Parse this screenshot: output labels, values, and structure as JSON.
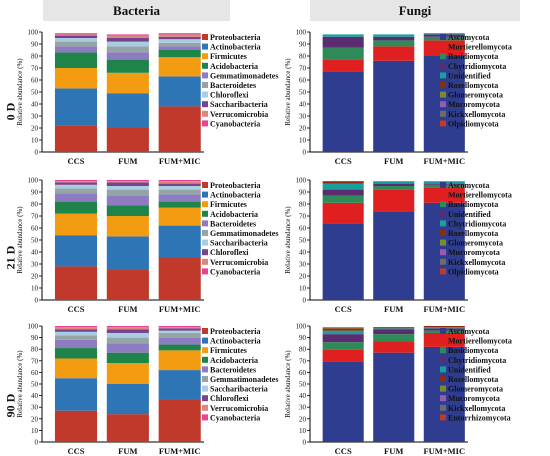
{
  "headers": {
    "bacteria": "Bacteria",
    "fungi": "Fungi"
  },
  "rows": [
    "0 D",
    "21 D",
    "90 D"
  ],
  "axis": {
    "ylabel": "Relative abundance (%)",
    "ticks": [
      "0",
      "10",
      "20",
      "30",
      "40",
      "50",
      "60",
      "70",
      "80",
      "90",
      "100"
    ]
  },
  "colors": {
    "bacteria": [
      "#C0392B",
      "#2E75B6",
      "#F39C12",
      "#1E8449",
      "#8E7CC3",
      "#95A5A6",
      "#A9CCE3",
      "#76448A",
      "#D98880",
      "#E84393"
    ],
    "fungi": [
      "#2E3D8F",
      "#E02020",
      "#2E8B57",
      "#5B2C6F",
      "#1A9E9E",
      "#8B2E10",
      "#7D8B2E",
      "#9B59B6",
      "#6C6C6C",
      "#C0392B",
      "#3A5A1A"
    ]
  },
  "chart_data": [
    {
      "type": "bar",
      "stacked": true,
      "panel": "Bacteria 0 D",
      "categories": [
        "CCS",
        "FUM",
        "FUM+MIC"
      ],
      "ylim": [
        0,
        100
      ],
      "ylabel": "Relative abundance (%)",
      "legend": [
        "Proteobacteria",
        "Actinobacteria",
        "Firmicutes",
        "Acidobacteria",
        "Gemmatimonadetes",
        "Bacteroidetes",
        "Chloroflexi",
        "Saccharibacteria",
        "Verrucomicrobia",
        "Cyanobacteria"
      ],
      "series": [
        {
          "name": "Proteobacteria",
          "values": [
            22,
            20,
            38
          ]
        },
        {
          "name": "Actinobacteria",
          "values": [
            31,
            29,
            25
          ]
        },
        {
          "name": "Firmicutes",
          "values": [
            17,
            17,
            16
          ]
        },
        {
          "name": "Acidobacteria",
          "values": [
            13,
            11,
            6
          ]
        },
        {
          "name": "Gemmatimonadetes",
          "values": [
            5,
            6,
            3
          ]
        },
        {
          "name": "Bacteroidetes",
          "values": [
            4,
            5,
            3
          ]
        },
        {
          "name": "Chloroflexi",
          "values": [
            3,
            4,
            3
          ]
        },
        {
          "name": "Saccharibacteria",
          "values": [
            2,
            3,
            2
          ]
        },
        {
          "name": "Verrucomicrobia",
          "values": [
            1,
            2,
            2
          ]
        },
        {
          "name": "Cyanobacteria",
          "values": [
            1,
            1,
            1
          ]
        }
      ]
    },
    {
      "type": "bar",
      "stacked": true,
      "panel": "Fungi 0 D",
      "categories": [
        "CCS",
        "FUM",
        "FUM+MIC"
      ],
      "ylim": [
        0,
        100
      ],
      "ylabel": "Relative abundance (%)",
      "legend": [
        "Ascomycota",
        "Mortierellomycota",
        "Basidiomycota",
        "Chytridiomycota",
        "Unidentified",
        "Rozellomycota",
        "Glomeromycota",
        "Mucoromycota",
        "Kickxellomycota",
        "Olpidiomycota"
      ],
      "series": [
        {
          "name": "Ascomycota",
          "values": [
            67,
            76,
            80
          ]
        },
        {
          "name": "Mortierellomycota",
          "values": [
            10,
            12,
            13
          ]
        },
        {
          "name": "Basidiomycota",
          "values": [
            10,
            5,
            3
          ]
        },
        {
          "name": "Chytridiomycota",
          "values": [
            9,
            3,
            2
          ]
        },
        {
          "name": "Unidentified",
          "values": [
            2,
            2,
            1
          ]
        },
        {
          "name": "Rozellomycota",
          "values": [
            0,
            0,
            0
          ]
        },
        {
          "name": "Glomeromycota",
          "values": [
            0,
            0,
            0
          ]
        },
        {
          "name": "Mucoromycota",
          "values": [
            0,
            0,
            0
          ]
        },
        {
          "name": "Kickxellomycota",
          "values": [
            0,
            0,
            0
          ]
        },
        {
          "name": "Olpidiomycota",
          "values": [
            0,
            0,
            0
          ]
        }
      ]
    },
    {
      "type": "bar",
      "stacked": true,
      "panel": "Bacteria 21 D",
      "categories": [
        "CCS",
        "FUM",
        "FUM+MIC"
      ],
      "ylim": [
        0,
        100
      ],
      "ylabel": "Relative abundance (%)",
      "legend": [
        "Proteobacteria",
        "Actinobacteria",
        "Firmicutes",
        "Acidobacteria",
        "Bacteroidetes",
        "Gemmatimonadetes",
        "Saccharibacteria",
        "Chloroflexi",
        "Verrucomicrobia",
        "Cyanobacteria"
      ],
      "series": [
        {
          "name": "Proteobacteria",
          "values": [
            28,
            25,
            35
          ]
        },
        {
          "name": "Actinobacteria",
          "values": [
            26,
            28,
            27
          ]
        },
        {
          "name": "Firmicutes",
          "values": [
            18,
            17,
            15
          ]
        },
        {
          "name": "Acidobacteria",
          "values": [
            10,
            9,
            5
          ]
        },
        {
          "name": "Bacteroidetes",
          "values": [
            7,
            8,
            6
          ]
        },
        {
          "name": "Gemmatimonadetes",
          "values": [
            4,
            5,
            4
          ]
        },
        {
          "name": "Saccharibacteria",
          "values": [
            3,
            3,
            3
          ]
        },
        {
          "name": "Chloroflexi",
          "values": [
            2,
            3,
            2
          ]
        },
        {
          "name": "Verrucomicrobia",
          "values": [
            1,
            1,
            2
          ]
        },
        {
          "name": "Cyanobacteria",
          "values": [
            1,
            1,
            1
          ]
        }
      ]
    },
    {
      "type": "bar",
      "stacked": true,
      "panel": "Fungi 21 D",
      "categories": [
        "CCS",
        "FUM",
        "FUM+MIC"
      ],
      "ylim": [
        0,
        100
      ],
      "ylabel": "Relative abundance (%)",
      "legend": [
        "Ascomycota",
        "Mortierellomycota",
        "Basidiomycota",
        "Unidentified",
        "Chytridiomycota",
        "Rozellomycota",
        "Glomeromycota",
        "Mucoromycota",
        "Kickxellomycota",
        "Olpidiomycota"
      ],
      "series": [
        {
          "name": "Ascomycota",
          "values": [
            64,
            74,
            81
          ]
        },
        {
          "name": "Mortierellomycota",
          "values": [
            17,
            18,
            13
          ]
        },
        {
          "name": "Basidiomycota",
          "values": [
            6,
            3,
            2
          ]
        },
        {
          "name": "Unidentified",
          "values": [
            5,
            2,
            1
          ]
        },
        {
          "name": "Chytridiomycota",
          "values": [
            5,
            2,
            2
          ]
        },
        {
          "name": "Rozellomycota",
          "values": [
            2,
            0,
            0
          ]
        },
        {
          "name": "Glomeromycota",
          "values": [
            0,
            0,
            0
          ]
        },
        {
          "name": "Mucoromycota",
          "values": [
            0,
            0,
            0
          ]
        },
        {
          "name": "Kickxellomycota",
          "values": [
            0,
            0,
            0
          ]
        },
        {
          "name": "Olpidiomycota",
          "values": [
            0,
            0,
            0
          ]
        }
      ]
    },
    {
      "type": "bar",
      "stacked": true,
      "panel": "Bacteria 90 D",
      "categories": [
        "CCS",
        "FUM",
        "FUM+MIC"
      ],
      "ylim": [
        0,
        100
      ],
      "ylabel": "Relative abundance (%)",
      "legend": [
        "Proteobacteria",
        "Actinobacteria",
        "Firmicutes",
        "Acidobacteria",
        "Bacteroidetes",
        "Gemmatimonadetes",
        "Saccharibacteria",
        "Chloroflexi",
        "Verrucomicrobia",
        "Cyanobacteria"
      ],
      "series": [
        {
          "name": "Proteobacteria",
          "values": [
            27,
            24,
            37
          ]
        },
        {
          "name": "Actinobacteria",
          "values": [
            28,
            26,
            25
          ]
        },
        {
          "name": "Firmicutes",
          "values": [
            17,
            18,
            17
          ]
        },
        {
          "name": "Acidobacteria",
          "values": [
            9,
            9,
            5
          ]
        },
        {
          "name": "Bacteroidetes",
          "values": [
            7,
            8,
            6
          ]
        },
        {
          "name": "Gemmatimonadetes",
          "values": [
            4,
            5,
            4
          ]
        },
        {
          "name": "Saccharibacteria",
          "values": [
            3,
            4,
            2
          ]
        },
        {
          "name": "Chloroflexi",
          "values": [
            2,
            3,
            2
          ]
        },
        {
          "name": "Verrucomicrobia",
          "values": [
            2,
            2,
            1
          ]
        },
        {
          "name": "Cyanobacteria",
          "values": [
            1,
            1,
            1
          ]
        }
      ]
    },
    {
      "type": "bar",
      "stacked": true,
      "panel": "Fungi 90 D",
      "categories": [
        "CCS",
        "FUM",
        "FUM+MIC"
      ],
      "ylim": [
        0,
        100
      ],
      "ylabel": "Relative abundance (%)",
      "legend": [
        "Ascomycota",
        "Mortierellomycota",
        "Basidiomycota",
        "Chytridiomycota",
        "Unidentified",
        "Rozellomycota",
        "Glomeromycota",
        "Mucoromycota",
        "Kickxellomycota",
        "Entorrhizomycota"
      ],
      "series": [
        {
          "name": "Ascomycota",
          "values": [
            69,
            77,
            82
          ]
        },
        {
          "name": "Mortierellomycota",
          "values": [
            11,
            10,
            12
          ]
        },
        {
          "name": "Basidiomycota",
          "values": [
            6,
            6,
            2
          ]
        },
        {
          "name": "Chytridiomycota",
          "values": [
            7,
            4,
            2
          ]
        },
        {
          "name": "Unidentified",
          "values": [
            3,
            1,
            1
          ]
        },
        {
          "name": "Rozellomycota",
          "values": [
            2,
            1,
            1
          ]
        },
        {
          "name": "Glomeromycota",
          "values": [
            1,
            0,
            0
          ]
        },
        {
          "name": "Mucoromycota",
          "values": [
            0,
            0,
            0
          ]
        },
        {
          "name": "Kickxellomycota",
          "values": [
            0,
            0,
            0
          ]
        },
        {
          "name": "Entorrhizomycota",
          "values": [
            0,
            0,
            0
          ]
        }
      ]
    }
  ]
}
